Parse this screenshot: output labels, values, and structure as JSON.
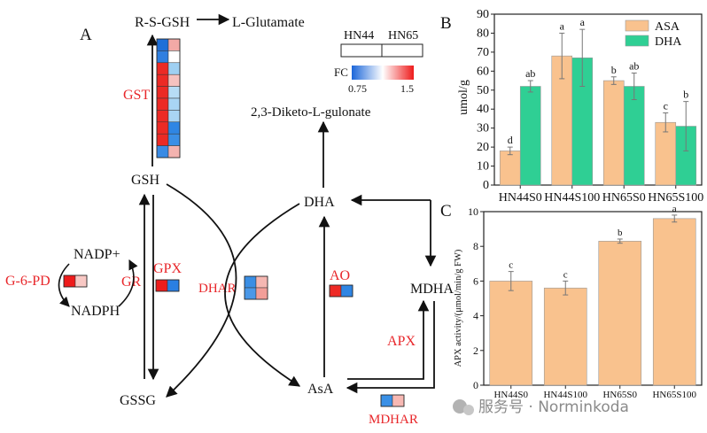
{
  "panel_a": {
    "label": "A",
    "metabolites": {
      "rsgsh": "R-S-GSH",
      "glutamate": "L-Glutamate",
      "diketo": "2,3-Diketo-L-gulonate",
      "gsh": "GSH",
      "gssg": "GSSG",
      "dha": "DHA",
      "mdha": "MDHA",
      "asa": "AsA",
      "nadp": "NADP+",
      "nadph": "NADPH"
    },
    "enzymes": {
      "gst": "GST",
      "gpx": "GPX",
      "gr": "GR",
      "g6pd": "G-6-PD",
      "dhar": "DHAR",
      "ao": "AO",
      "apx": "APX",
      "mdhar": "MDHAR"
    },
    "legend": {
      "col1": "HN44",
      "col2": "HN65",
      "fc_label": "FC",
      "fc_min": "0.75",
      "fc_max": "1.5",
      "colors": [
        "#1b66d9",
        "#ffffff",
        "#ee1b1b"
      ]
    },
    "heatmaps": {
      "gst": [
        [
          "#1e6fd8",
          "#f2a9a6"
        ],
        [
          "#2f7fe0",
          "#ffffff"
        ],
        [
          "#ec2a25",
          "#9fd0f2"
        ],
        [
          "#ec2a25",
          "#f6c2bf"
        ],
        [
          "#ec2a25",
          "#b7dcf5"
        ],
        [
          "#ec2a25",
          "#a9d5f4"
        ],
        [
          "#ec2a25",
          "#a9d5f4"
        ],
        [
          "#ec2a25",
          "#2f86e4"
        ],
        [
          "#ec2a25",
          "#3b8fe6"
        ],
        [
          "#3a8be4",
          "#f4b3af"
        ]
      ],
      "g6pd": [
        [
          "#ee1b1b",
          "#f8c8c4"
        ]
      ],
      "gpx": [
        [
          "#ec1c1c",
          "#2a7fe2"
        ]
      ],
      "dhar": [
        [
          "#3a8ee4",
          "#f5b7b2"
        ],
        [
          "#4a98e8",
          "#f29e98"
        ]
      ],
      "ao": [
        [
          "#ee2a26",
          "#2f85e3"
        ]
      ],
      "mdhar": [
        [
          "#3a90e6",
          "#f7b8b3"
        ]
      ]
    }
  },
  "panel_b": {
    "label": "B",
    "ylabel": "umol/g",
    "chart_data": {
      "type": "bar",
      "categories": [
        "HN44S0",
        "HN44S100",
        "HN65S0",
        "HN65S100"
      ],
      "series": [
        {
          "name": "ASA",
          "color": "#f9c28e",
          "values": [
            18,
            68,
            55,
            33
          ],
          "errors": [
            2,
            12,
            2,
            5
          ],
          "letters": [
            "d",
            "a",
            "b",
            "c"
          ]
        },
        {
          "name": "DHA",
          "color": "#2fcf94",
          "values": [
            52,
            67,
            52,
            31
          ],
          "errors": [
            3,
            15,
            7,
            13
          ],
          "letters": [
            "ab",
            "a",
            "ab",
            "b"
          ]
        }
      ],
      "ylim": [
        0,
        90
      ],
      "yticks": [
        0,
        10,
        20,
        30,
        40,
        50,
        60,
        70,
        80,
        90
      ],
      "legend": "top-right"
    }
  },
  "panel_c": {
    "label": "C",
    "ylabel": "APX activity/(μmol/min/g FW)",
    "chart_data": {
      "type": "bar",
      "categories": [
        "HN44S0",
        "HN44S100",
        "HN65S0",
        "HN65S100"
      ],
      "series": [
        {
          "name": "APX",
          "color": "#f9c28e",
          "values": [
            6.0,
            5.6,
            8.3,
            9.6
          ],
          "errors": [
            0.55,
            0.4,
            0.12,
            0.2
          ],
          "letters": [
            "c",
            "c",
            "b",
            "a"
          ]
        }
      ],
      "ylim": [
        0,
        10
      ],
      "yticks": [
        0,
        2,
        4,
        6,
        8,
        10
      ]
    }
  },
  "watermark": "服务号 · Norminkoda"
}
